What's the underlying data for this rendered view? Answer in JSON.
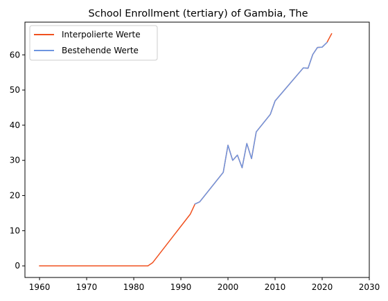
{
  "chart_data": {
    "type": "line",
    "title": "School Enrollment (tertiary) of Gambia, The",
    "xlabel": "",
    "ylabel": "",
    "xlim": [
      1956.9,
      2030
    ],
    "ylim": [
      -3.3,
      69.3
    ],
    "xticks": [
      1960,
      1970,
      1980,
      1990,
      2000,
      2010,
      2020,
      2030
    ],
    "yticks": [
      0,
      10,
      20,
      30,
      40,
      50,
      60
    ],
    "grid": false,
    "legend_position": "top-left",
    "series": [
      {
        "name": "Interpolierte Werte",
        "color": "#f0501e",
        "x": [
          1960,
          1983,
          1984,
          1992,
          1993,
          1994,
          1999,
          2000,
          2001,
          2002,
          2003,
          2004,
          2005,
          2006,
          2009,
          2010,
          2016,
          2017,
          2018,
          2019,
          2020,
          2021,
          2022
        ],
        "y": [
          0,
          0,
          0.9,
          14.7,
          17.6,
          18.2,
          26.6,
          34.3,
          30.0,
          31.5,
          27.9,
          34.8,
          30.5,
          38.1,
          43.1,
          46.9,
          56.3,
          56.2,
          60.1,
          62.1,
          62.2,
          63.5,
          66.0
        ]
      },
      {
        "name": "Bestehende Werte",
        "color": "#6d95e0",
        "x": [
          1993,
          1994,
          1999,
          2000,
          2001,
          2002,
          2003,
          2004,
          2005,
          2006,
          2009,
          2010,
          2016,
          2017,
          2018,
          2019,
          2020,
          2021
        ],
        "y": [
          17.6,
          18.2,
          26.6,
          34.3,
          30.0,
          31.5,
          27.9,
          34.8,
          30.5,
          38.1,
          43.1,
          46.9,
          56.3,
          56.2,
          60.1,
          62.1,
          62.2,
          63.5
        ]
      }
    ]
  }
}
